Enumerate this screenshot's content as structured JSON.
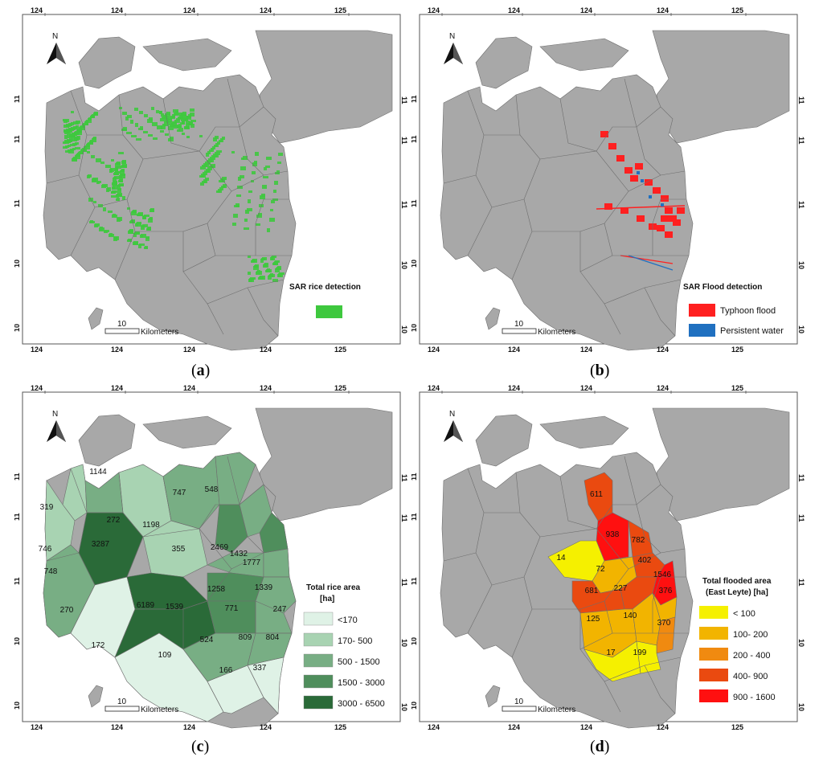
{
  "panels": [
    {
      "id": "a",
      "caption_letter": "a",
      "north": "N",
      "scale_value": "10",
      "scale_unit": "Kilometers",
      "legend_title": "SAR rice detection",
      "legend_items": [
        {
          "label": "",
          "color": "#3ec83e"
        }
      ]
    },
    {
      "id": "b",
      "caption_letter": "b",
      "north": "N",
      "scale_value": "10",
      "scale_unit": "Kilometers",
      "legend_title": "SAR Flood detection",
      "legend_items": [
        {
          "label": "Typhoon flood",
          "color": "#ff2020"
        },
        {
          "label": "Persistent water",
          "color": "#2070c0"
        }
      ]
    },
    {
      "id": "c",
      "caption_letter": "c",
      "north": "N",
      "scale_value": "10",
      "scale_unit": "Kilometers",
      "legend_title": "Total rice area",
      "legend_title2": "[ha]",
      "legend_items": [
        {
          "label": "<170",
          "color": "#dff2e6"
        },
        {
          "label": "170- 500",
          "color": "#a8d3b2"
        },
        {
          "label": "500 - 1500",
          "color": "#78ae84"
        },
        {
          "label": "1500 - 3000",
          "color": "#4f8e5c"
        },
        {
          "label": "3000 - 6500",
          "color": "#2a6a38"
        }
      ],
      "values": [
        "1144",
        "319",
        "272",
        "747",
        "548",
        "1198",
        "746",
        "3287",
        "2469",
        "1432",
        "355",
        "1777",
        "748",
        "1258",
        "1339",
        "6189",
        "1539",
        "771",
        "247",
        "270",
        "524",
        "809",
        "804",
        "172",
        "109",
        "166",
        "337"
      ]
    },
    {
      "id": "d",
      "caption_letter": "d",
      "north": "N",
      "scale_value": "10",
      "scale_unit": "Kilometers",
      "legend_title": "Total flooded area",
      "legend_title2": "(East Leyte) [ha]",
      "legend_items": [
        {
          "label": "< 100",
          "color": "#f5f000"
        },
        {
          "label": "100- 200",
          "color": "#f2b400"
        },
        {
          "label": "200 - 400",
          "color": "#f08a10"
        },
        {
          "label": "400- 900",
          "color": "#ea4a10"
        },
        {
          "label": "900 - 1600",
          "color": "#ff1010"
        }
      ],
      "values": [
        "611",
        "938",
        "782",
        "14",
        "402",
        "72",
        "1546",
        "681",
        "227",
        "376",
        "125",
        "140",
        "370",
        "17",
        "199"
      ]
    }
  ],
  "axis": {
    "top": [
      "124",
      "124",
      "124",
      "124",
      "125"
    ],
    "left": [
      "11",
      "11",
      "11",
      "10",
      "10"
    ]
  },
  "colors": {
    "land": "#a8a8a8",
    "border": "#6e6e6e",
    "frame": "#555555"
  }
}
